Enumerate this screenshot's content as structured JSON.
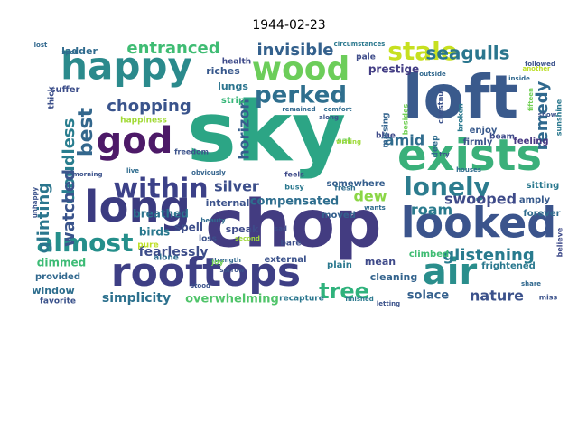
{
  "title": "1944-02-23",
  "words": [
    {
      "text": "sky",
      "color": "#2ca585"
    },
    {
      "text": "chop",
      "color": "#433c81"
    },
    {
      "text": "loft",
      "color": "#3a5a8c"
    },
    {
      "text": "exists",
      "color": "#3ab07a"
    },
    {
      "text": "rooftops",
      "color": "#3e3f85"
    },
    {
      "text": "long",
      "color": "#3b3b80"
    },
    {
      "text": "looked",
      "color": "#3b548c"
    },
    {
      "text": "happy",
      "color": "#2b8a8c"
    },
    {
      "text": "air",
      "color": "#2a8e8c"
    },
    {
      "text": "god",
      "color": "#4d1a68"
    },
    {
      "text": "wood",
      "color": "#6ccd5a"
    },
    {
      "text": "within",
      "color": "#3c4188"
    },
    {
      "text": "lonely",
      "color": "#2c7c8e"
    },
    {
      "text": "almost",
      "color": "#258f8b"
    },
    {
      "text": "stale",
      "color": "#c7e020"
    },
    {
      "text": "perked",
      "color": "#2f6f8e"
    },
    {
      "text": "best",
      "color": "#33678d"
    },
    {
      "text": "tree",
      "color": "#2fb27c"
    },
    {
      "text": "glistening",
      "color": "#287b8e"
    },
    {
      "text": "seagulls",
      "color": "#2a768e"
    },
    {
      "text": "entranced",
      "color": "#3fbc73"
    },
    {
      "text": "invisible",
      "color": "#34618d"
    },
    {
      "text": "chopping",
      "color": "#3a548c"
    },
    {
      "text": "remedy",
      "color": "#30698e"
    },
    {
      "text": "cloudless",
      "color": "#287d8e"
    },
    {
      "text": "glinting",
      "color": "#2b768e"
    },
    {
      "text": "watched",
      "color": "#3a548c"
    },
    {
      "text": "swooped",
      "color": "#3e4a89"
    },
    {
      "text": "amid",
      "color": "#2f6c8e"
    },
    {
      "text": "silver",
      "color": "#3c4e8a"
    },
    {
      "text": "horizon",
      "color": "#365d8d"
    },
    {
      "text": "roam",
      "color": "#2a7b8e"
    },
    {
      "text": "dew",
      "color": "#8bd646"
    },
    {
      "text": "nature",
      "color": "#3b518b"
    },
    {
      "text": "compensated",
      "color": "#2e6e8e"
    },
    {
      "text": "fearlessly",
      "color": "#3d4d8a"
    },
    {
      "text": "simplicity",
      "color": "#2d718e"
    },
    {
      "text": "overwhelming",
      "color": "#50c46a"
    },
    {
      "text": "solace",
      "color": "#34608d"
    },
    {
      "text": "breathed",
      "color": "#2c738e"
    },
    {
      "text": "spell",
      "color": "#3d4e8a"
    },
    {
      "text": "birds",
      "color": "#2a788e"
    },
    {
      "text": "dimmed",
      "color": "#3cbb75"
    },
    {
      "text": "window",
      "color": "#2e6e8e"
    },
    {
      "text": "internal",
      "color": "#3b528b"
    },
    {
      "text": "speak",
      "color": "#3e4a89"
    },
    {
      "text": "cleaning",
      "color": "#33638d"
    },
    {
      "text": "mean",
      "color": "#3e4989"
    },
    {
      "text": "prestige",
      "color": "#433d84"
    },
    {
      "text": "riches",
      "color": "#38588c"
    },
    {
      "text": "lungs",
      "color": "#2b748e"
    },
    {
      "text": "strip",
      "color": "#39b77a"
    },
    {
      "text": "ladder",
      "color": "#2f6b8e"
    },
    {
      "text": "suffer",
      "color": "#3d4e8a"
    },
    {
      "text": "thick",
      "color": "#3c4f8a"
    },
    {
      "text": "health",
      "color": "#3e4a89"
    },
    {
      "text": "pale",
      "color": "#3e4c8a"
    },
    {
      "text": "enjoy",
      "color": "#38598c"
    },
    {
      "text": "firmly",
      "color": "#3b528b"
    },
    {
      "text": "feeling",
      "color": "#453781"
    },
    {
      "text": "beam",
      "color": "#3e4a89"
    },
    {
      "text": "sitting",
      "color": "#2a788e"
    },
    {
      "text": "amply",
      "color": "#375a8c"
    },
    {
      "text": "forever",
      "color": "#2f6c8e"
    },
    {
      "text": "climbed",
      "color": "#3fbc73"
    },
    {
      "text": "frightened",
      "color": "#2a788e"
    },
    {
      "text": "somewhere",
      "color": "#355e8d"
    },
    {
      "text": "moved",
      "color": "#34608d"
    },
    {
      "text": "plain",
      "color": "#2a788e"
    },
    {
      "text": "external",
      "color": "#3b528b"
    },
    {
      "text": "recapture",
      "color": "#2a768e"
    },
    {
      "text": "provided",
      "color": "#31688e"
    },
    {
      "text": "favorite",
      "color": "#3b528b"
    },
    {
      "text": "alone",
      "color": "#2f6c8e"
    },
    {
      "text": "loss",
      "color": "#3b528b"
    },
    {
      "text": "happiness",
      "color": "#a2da37"
    },
    {
      "text": "pure",
      "color": "#bddf26"
    },
    {
      "text": "bare",
      "color": "#3d4e8a"
    },
    {
      "text": "sat",
      "color": "#6ece58"
    },
    {
      "text": "deep",
      "color": "#2f6c8e"
    },
    {
      "text": "blue",
      "color": "#3e4a89"
    },
    {
      "text": "missing",
      "color": "#33638d"
    },
    {
      "text": "besides",
      "color": "#73d056"
    },
    {
      "text": "chestnut",
      "color": "#3b528b"
    },
    {
      "text": "broken",
      "color": "#2a788e"
    },
    {
      "text": "busy",
      "color": "#2a788e"
    },
    {
      "text": "fresh",
      "color": "#2f6c8e"
    },
    {
      "text": "feels",
      "color": "#3e4a89"
    },
    {
      "text": "freedom",
      "color": "#3b528b"
    },
    {
      "text": "obviously",
      "color": "#33638d"
    },
    {
      "text": "beauty",
      "color": "#2f6c8e"
    },
    {
      "text": "strength",
      "color": "#31688e"
    },
    {
      "text": "stood",
      "color": "#3b528b"
    },
    {
      "text": "joy",
      "color": "#73d056"
    },
    {
      "text": "sorrow",
      "color": "#3b528b"
    },
    {
      "text": "second",
      "color": "#9fda3a"
    },
    {
      "text": "sad",
      "color": "#3e4a89"
    },
    {
      "text": "finished",
      "color": "#2a788e"
    },
    {
      "text": "letting",
      "color": "#3b528b"
    },
    {
      "text": "wants",
      "color": "#2f6c8e"
    },
    {
      "text": "share",
      "color": "#31688e"
    },
    {
      "text": "miss",
      "color": "#3b528b"
    },
    {
      "text": "believe",
      "color": "#3e4a89"
    },
    {
      "text": "sunshine",
      "color": "#2a788e"
    },
    {
      "text": "show",
      "color": "#3b528b"
    },
    {
      "text": "inside",
      "color": "#31688e"
    },
    {
      "text": "fifteen",
      "color": "#73d056"
    },
    {
      "text": "another",
      "color": "#bddf26"
    },
    {
      "text": "followed",
      "color": "#3b528b"
    },
    {
      "text": "outside",
      "color": "#31688e"
    },
    {
      "text": "houses",
      "color": "#2f6c8e"
    },
    {
      "text": "writing",
      "color": "#9fda3a"
    },
    {
      "text": "try",
      "color": "#3b528b"
    },
    {
      "text": "remained",
      "color": "#31688e"
    },
    {
      "text": "comfort",
      "color": "#2f6c8e"
    },
    {
      "text": "along",
      "color": "#3b528b"
    },
    {
      "text": "circumstances",
      "color": "#2a788e"
    },
    {
      "text": "lost",
      "color": "#31688e"
    },
    {
      "text": "spot",
      "color": "#2f6c8e"
    },
    {
      "text": "morning",
      "color": "#3b528b"
    },
    {
      "text": "live",
      "color": "#2f6c8e"
    },
    {
      "text": "unhappy",
      "color": "#3b528b"
    }
  ]
}
